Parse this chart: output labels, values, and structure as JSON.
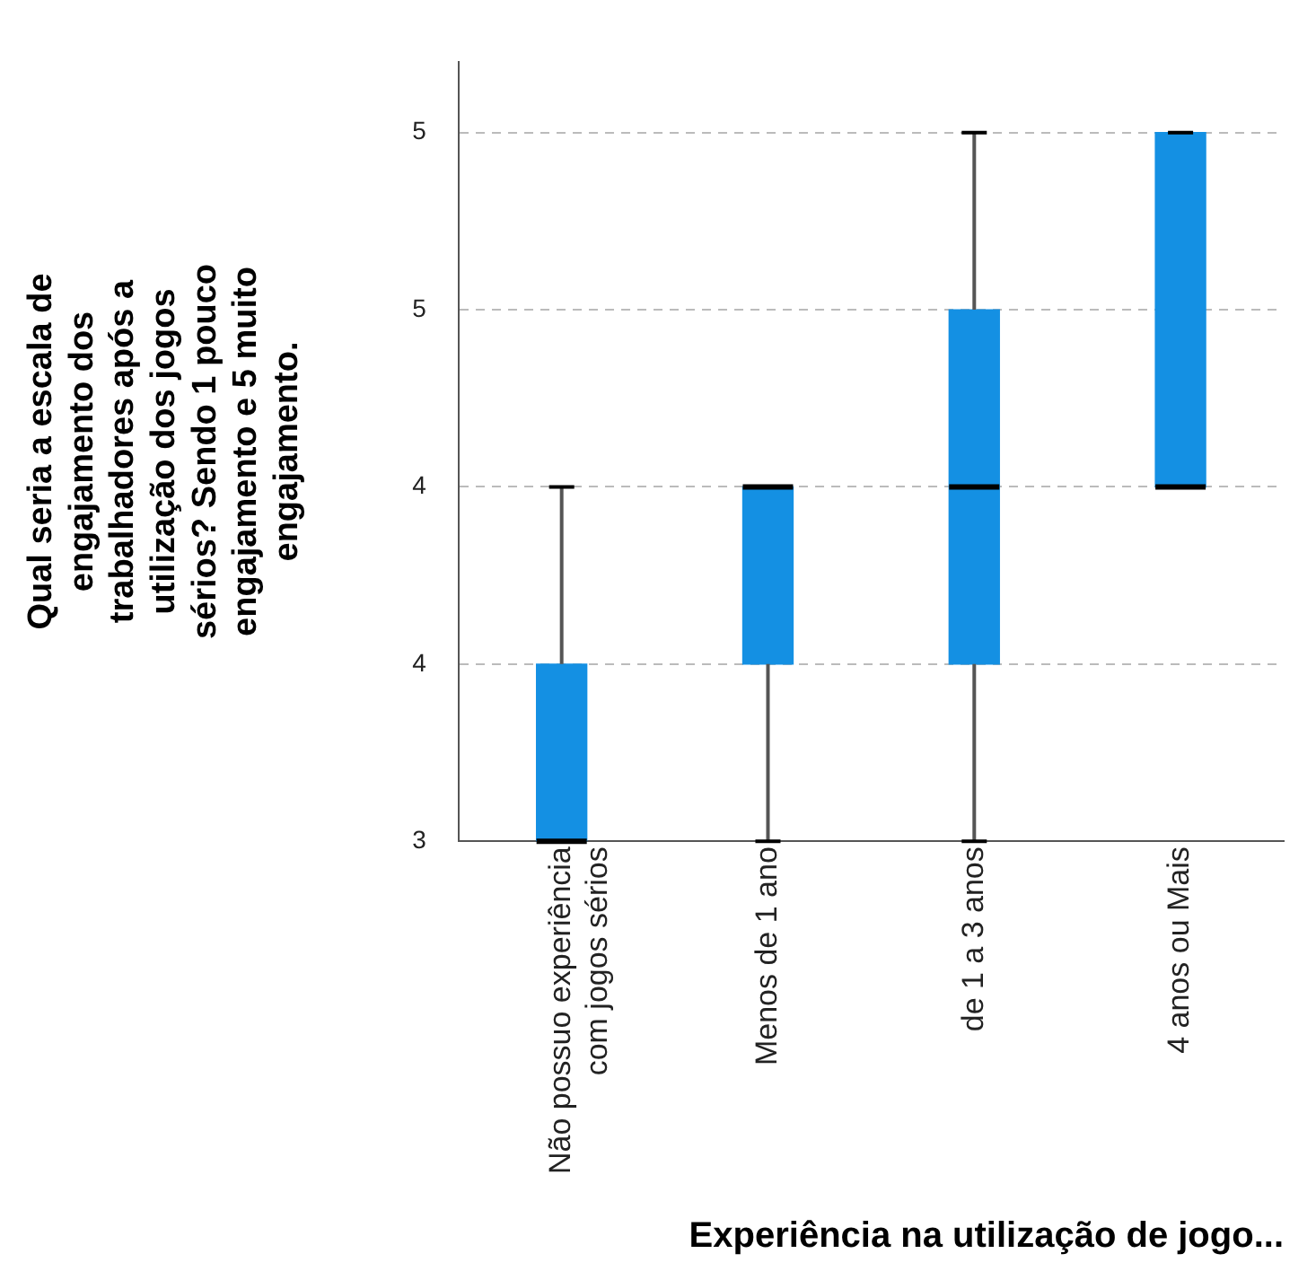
{
  "chart_data": {
    "type": "box",
    "xlabel": "Experiência na utilização de jogo...",
    "ylabel": "Qual seria a escala de engajamento dos trabalhadores após a utilização dos jogos sérios? Sendo 1 pouco engajamento e 5 muito engajamento.",
    "categories": [
      "Não possuo experiência com jogos sérios",
      "Menos de 1 ano",
      "de 1 a 3 anos",
      "4 anos ou Mais"
    ],
    "boxes": [
      {
        "low": 3,
        "q1": 3,
        "median": 3,
        "q3": 3.5,
        "high": 4
      },
      {
        "low": 3,
        "q1": 3.5,
        "median": 4,
        "q3": 4,
        "high": 4
      },
      {
        "low": 3,
        "q1": 3.5,
        "median": 4,
        "q3": 4.5,
        "high": 5
      },
      {
        "low": 4,
        "q1": 4,
        "median": 4,
        "q3": 5,
        "high": 5
      }
    ],
    "color": "#1490e3",
    "ylim": [
      3,
      5.2
    ],
    "yticks": [
      {
        "value": 3,
        "label": "3"
      },
      {
        "value": 3.5,
        "label": "4"
      },
      {
        "value": 4,
        "label": "4"
      },
      {
        "value": 4.5,
        "label": "5"
      },
      {
        "value": 5,
        "label": "5"
      }
    ],
    "grid": "y",
    "legend": false
  }
}
